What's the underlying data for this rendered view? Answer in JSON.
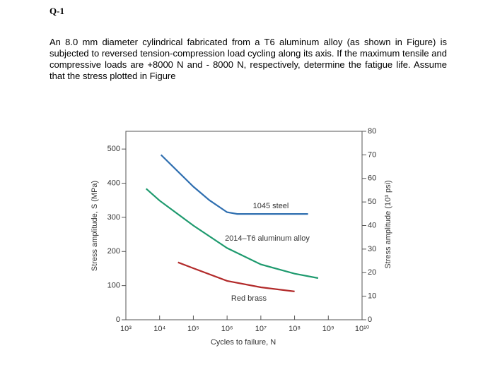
{
  "heading": "Q-1",
  "paragraph": "An 8.0 mm diameter cylindrical fabricated from a T6 aluminum alloy  (as shown in Figure) is subjected to reversed tension-compression load cycling along its axis. If the maximum tensile and compressive loads are +8000 N and - 8000 N, respectively, determine the fatigue life. Assume that the stress plotted in Figure",
  "chart_data": {
    "type": "line",
    "xlabel": "Cycles to failure, N",
    "ylabel": "Stress amplitude, S (MPa)",
    "y2label": "Stress amplitude (10³ psi)",
    "x_log": true,
    "xlim": [
      1000,
      10000000000
    ],
    "xticks": [
      {
        "value": 1000,
        "label": "10³"
      },
      {
        "value": 10000,
        "label": "10⁴"
      },
      {
        "value": 100000,
        "label": "10⁵"
      },
      {
        "value": 1000000,
        "label": "10⁶"
      },
      {
        "value": 10000000,
        "label": "10⁷"
      },
      {
        "value": 100000000,
        "label": "10⁸"
      },
      {
        "value": 1000000000,
        "label": "10⁹"
      },
      {
        "value": 10000000000,
        "label": "10¹⁰"
      }
    ],
    "ylim": [
      0,
      552
    ],
    "yticks": [
      0,
      100,
      200,
      300,
      400,
      500
    ],
    "y2lim": [
      0,
      80
    ],
    "y2ticks": [
      0,
      10,
      20,
      30,
      40,
      50,
      60,
      70,
      80
    ],
    "series": [
      {
        "name": "1045 steel",
        "color": "#2f6fb0",
        "x": [
          11000,
          100000,
          300000,
          1000000,
          2000000,
          250000000
        ],
        "values": [
          483,
          390,
          350,
          315,
          310,
          310
        ]
      },
      {
        "name": "2014–T6 aluminum alloy",
        "color": "#1e9a6e",
        "x": [
          4000,
          10000,
          100000,
          1000000,
          10000000,
          100000000,
          500000000
        ],
        "values": [
          384,
          349,
          276,
          210,
          162,
          135,
          122
        ]
      },
      {
        "name": "Red brass",
        "color": "#b22a2a",
        "x": [
          35000,
          100000,
          1000000,
          10000000,
          100000000
        ],
        "values": [
          168,
          151,
          114,
          95,
          83
        ]
      }
    ]
  }
}
